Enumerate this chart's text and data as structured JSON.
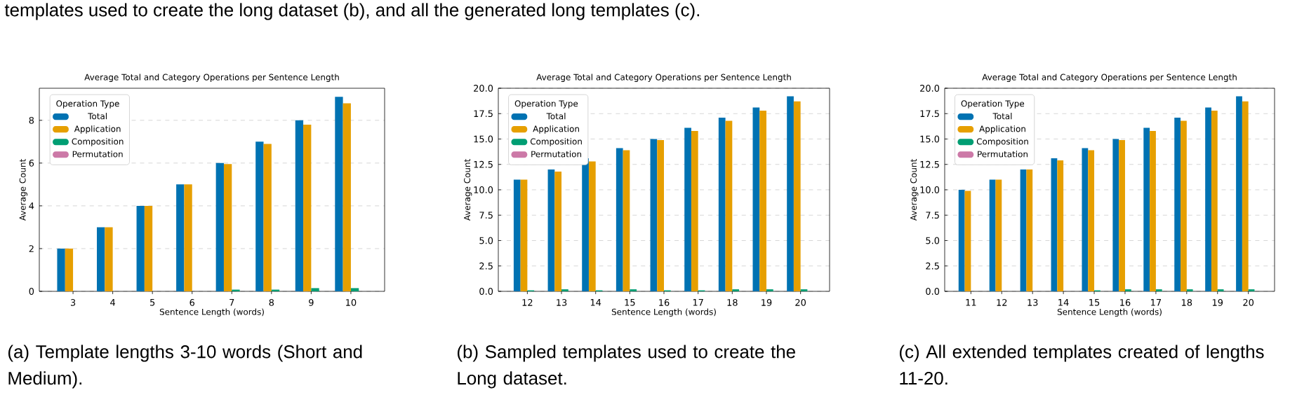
{
  "chart_data": [
    {
      "type": "bar",
      "title": "Average Total and Category Operations per Sentence Length",
      "xlabel": "Sentence Length (words)",
      "ylabel": "Average Count",
      "legend_title": "Operation Type",
      "legend": "top left",
      "grid": "y",
      "categories": [
        "3",
        "4",
        "5",
        "6",
        "7",
        "8",
        "9",
        "10"
      ],
      "series": [
        {
          "name": "Total",
          "color": "#0072b2",
          "values": [
            2,
            3,
            4,
            5,
            6,
            7,
            8,
            9.1
          ]
        },
        {
          "name": "Application",
          "color": "#e69f00",
          "values": [
            2,
            3,
            4,
            5,
            5.95,
            6.9,
            7.8,
            8.8
          ]
        },
        {
          "name": "Composition",
          "color": "#009e73",
          "values": [
            0,
            0,
            0,
            0,
            0.08,
            0.08,
            0.15,
            0.15
          ]
        },
        {
          "name": "Permutation",
          "color": "#cc79a7",
          "values": [
            0,
            0,
            0,
            0,
            0,
            0,
            0,
            0
          ]
        }
      ],
      "ylim": [
        0,
        9.5
      ],
      "yticks": [
        0,
        2,
        4,
        6,
        8
      ],
      "annotations": [
        "templates used to create the long dataset (b), and all the generated long templates (c).",
        "(a) Template lengths 3-10 words (Short and Medium)."
      ]
    },
    {
      "type": "bar",
      "title": "Average Total and Category Operations per Sentence Length",
      "xlabel": "Sentence Length (words)",
      "ylabel": "Average Count",
      "legend_title": "Operation Type",
      "legend": "top left",
      "grid": "y",
      "categories": [
        "12",
        "13",
        "14",
        "15",
        "16",
        "17",
        "18",
        "19",
        "20"
      ],
      "series": [
        {
          "name": "Total",
          "color": "#0072b2",
          "values": [
            11,
            12,
            13.1,
            14.1,
            15,
            16.1,
            17.1,
            18.1,
            19.2
          ]
        },
        {
          "name": "Application",
          "color": "#e69f00",
          "values": [
            11,
            11.8,
            12.8,
            13.9,
            14.9,
            15.8,
            16.8,
            17.8,
            18.7
          ]
        },
        {
          "name": "Composition",
          "color": "#009e73",
          "values": [
            0.1,
            0.2,
            0.1,
            0.2,
            0.1,
            0.1,
            0.2,
            0.2,
            0.2
          ]
        },
        {
          "name": "Permutation",
          "color": "#cc79a7",
          "values": [
            0,
            0,
            0,
            0,
            0,
            0,
            0,
            0,
            0
          ]
        }
      ],
      "ylim": [
        0,
        20
      ],
      "yticks": [
        {
          "value": 0,
          "label": "0.0"
        },
        {
          "value": 2.5,
          "label": "2.5"
        },
        {
          "value": 5,
          "label": "5.0"
        },
        {
          "value": 7.5,
          "label": "7.5"
        },
        {
          "value": 10,
          "label": "10.0"
        },
        {
          "value": 12.5,
          "label": "12.5"
        },
        {
          "value": 15,
          "label": "15.0"
        },
        {
          "value": 17.5,
          "label": "17.5"
        },
        {
          "value": 20,
          "label": "20.0"
        }
      ],
      "annotations": [
        "(b) Sampled templates used to create the Long dataset."
      ]
    },
    {
      "type": "bar",
      "title": "Average Total and Category Operations per Sentence Length",
      "xlabel": "Sentence Length (words)",
      "ylabel": "Average Count",
      "legend_title": "Operation Type",
      "legend": "top left",
      "grid": "y",
      "categories": [
        "11",
        "12",
        "13",
        "14",
        "15",
        "16",
        "17",
        "18",
        "19",
        "20"
      ],
      "series": [
        {
          "name": "Total",
          "color": "#0072b2",
          "values": [
            10,
            11,
            12,
            13.1,
            14.1,
            15,
            16.1,
            17.1,
            18.1,
            19.2
          ]
        },
        {
          "name": "Application",
          "color": "#e69f00",
          "values": [
            9.9,
            11,
            12,
            12.9,
            13.9,
            14.9,
            15.8,
            16.8,
            17.8,
            18.7
          ]
        },
        {
          "name": "Composition",
          "color": "#009e73",
          "values": [
            0,
            0,
            0,
            0,
            0.1,
            0.2,
            0.2,
            0.2,
            0.2,
            0.2
          ]
        },
        {
          "name": "Permutation",
          "color": "#cc79a7",
          "values": [
            0,
            0,
            0,
            0,
            0,
            0,
            0,
            0,
            0,
            0
          ]
        }
      ],
      "ylim": [
        0,
        20
      ],
      "yticks": [
        {
          "value": 0,
          "label": "0.0"
        },
        {
          "value": 2.5,
          "label": "2.5"
        },
        {
          "value": 5,
          "label": "5.0"
        },
        {
          "value": 7.5,
          "label": "7.5"
        },
        {
          "value": 10,
          "label": "10.0"
        },
        {
          "value": 12.5,
          "label": "12.5"
        },
        {
          "value": 15,
          "label": "15.0"
        },
        {
          "value": 17.5,
          "label": "17.5"
        },
        {
          "value": 20,
          "label": "20.0"
        }
      ],
      "annotations": [
        "(c) All extended templates created of lengths 11-20."
      ]
    }
  ]
}
